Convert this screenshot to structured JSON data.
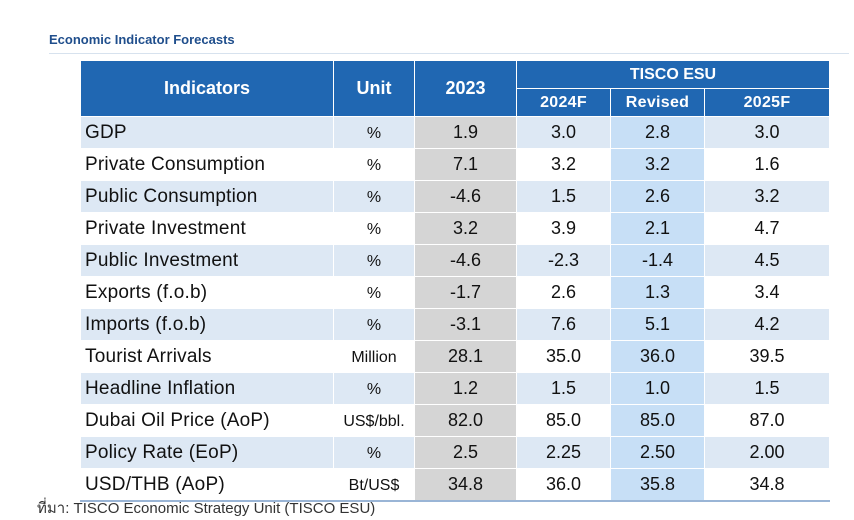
{
  "title": "Economic Indicator Forecasts",
  "headers": {
    "indicators": "Indicators",
    "unit": "Unit",
    "year2023": "2023",
    "group": "TISCO ESU",
    "sub": [
      "2024F",
      "Revised",
      "2025F"
    ]
  },
  "rows": [
    {
      "indicator": "GDP",
      "unit": "%",
      "y2023": "1.9",
      "f2024": "3.0",
      "revised": "2.8",
      "f2025": "3.0"
    },
    {
      "indicator": "Private Consumption",
      "unit": "%",
      "y2023": "7.1",
      "f2024": "3.2",
      "revised": "3.2",
      "f2025": "1.6"
    },
    {
      "indicator": "Public Consumption",
      "unit": "%",
      "y2023": "-4.6",
      "f2024": "1.5",
      "revised": "2.6",
      "f2025": "3.2"
    },
    {
      "indicator": "Private Investment",
      "unit": "%",
      "y2023": "3.2",
      "f2024": "3.9",
      "revised": "2.1",
      "f2025": "4.7"
    },
    {
      "indicator": "Public Investment",
      "unit": "%",
      "y2023": "-4.6",
      "f2024": "-2.3",
      "revised": "-1.4",
      "f2025": "4.5"
    },
    {
      "indicator": "Exports (f.o.b)",
      "unit": "%",
      "y2023": "-1.7",
      "f2024": "2.6",
      "revised": "1.3",
      "f2025": "3.4"
    },
    {
      "indicator": "Imports (f.o.b)",
      "unit": "%",
      "y2023": "-3.1",
      "f2024": "7.6",
      "revised": "5.1",
      "f2025": "4.2"
    },
    {
      "indicator": "Tourist Arrivals",
      "unit": "Million",
      "y2023": "28.1",
      "f2024": "35.0",
      "revised": "36.0",
      "f2025": "39.5"
    },
    {
      "indicator": "Headline Inflation",
      "unit": "%",
      "y2023": "1.2",
      "f2024": "1.5",
      "revised": "1.0",
      "f2025": "1.5"
    },
    {
      "indicator": "Dubai Oil Price (AoP)",
      "unit": "US$/bbl.",
      "y2023": "82.0",
      "f2024": "85.0",
      "revised": "85.0",
      "f2025": "87.0"
    },
    {
      "indicator": "Policy Rate (EoP)",
      "unit": "%",
      "y2023": "2.5",
      "f2024": "2.25",
      "revised": "2.50",
      "f2025": "2.00"
    },
    {
      "indicator": "USD/THB (AoP)",
      "unit": "Bt/US$",
      "y2023": "34.8",
      "f2024": "36.0",
      "revised": "35.8",
      "f2025": "34.8"
    }
  ],
  "source": "ที่มา: TISCO Economic Strategy Unit (TISCO ESU)",
  "colors": {
    "header_bg": "#2067b2",
    "row_stripe": "#dde8f4",
    "col_2023": "#d5d5d5",
    "col_revised": "#c7dff6",
    "title": "#1f4e8c"
  }
}
